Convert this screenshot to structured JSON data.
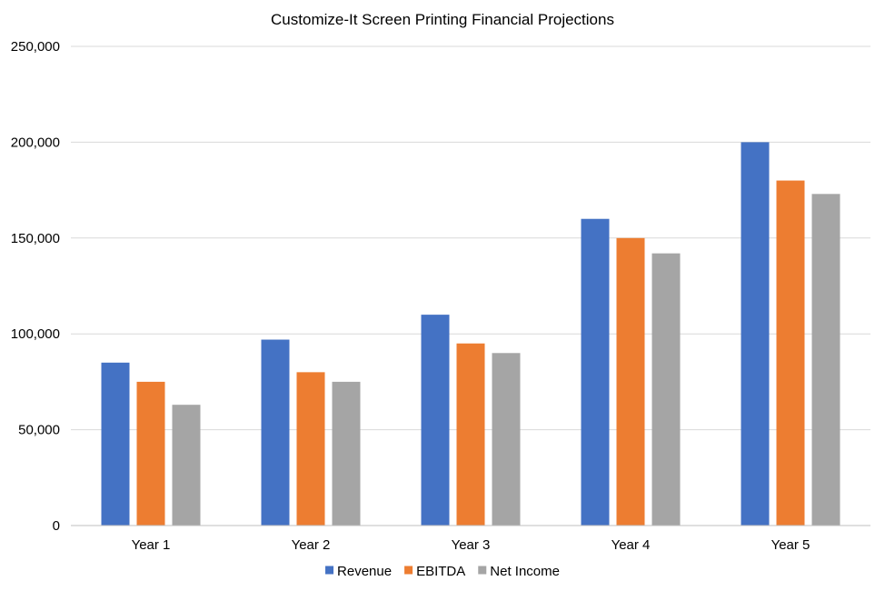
{
  "chart_data": {
    "type": "bar",
    "title": "Customize-It Screen Printing Financial Projections",
    "xlabel": "",
    "ylabel": "",
    "categories": [
      "Year 1",
      "Year 2",
      "Year 3",
      "Year 4",
      "Year 5"
    ],
    "series": [
      {
        "name": "Revenue",
        "color": "#4472c4",
        "values": [
          85000,
          97000,
          110000,
          160000,
          200000
        ]
      },
      {
        "name": "EBITDA",
        "color": "#ed7d31",
        "values": [
          75000,
          80000,
          95000,
          150000,
          180000
        ]
      },
      {
        "name": "Net Income",
        "color": "#a5a5a5",
        "values": [
          63000,
          75000,
          90000,
          142000,
          173000
        ]
      }
    ],
    "ylim": [
      0,
      250000
    ],
    "yticks": [
      "0",
      "50,000",
      "100,000",
      "150,000",
      "200,000",
      "250,000"
    ],
    "ytick_values": [
      0,
      50000,
      100000,
      150000,
      200000,
      250000
    ],
    "grid": true,
    "legend_position": "bottom"
  }
}
